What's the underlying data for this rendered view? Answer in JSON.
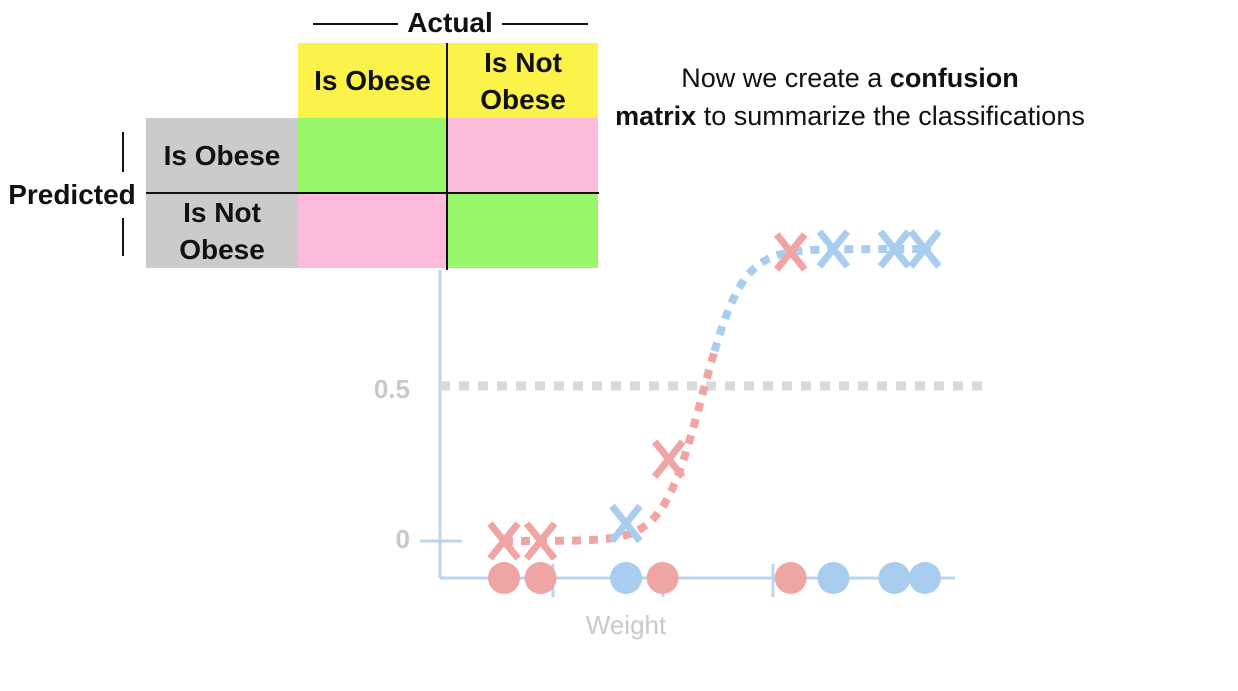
{
  "matrix": {
    "actual_label": "Actual",
    "predicted_label": "Predicted",
    "col_headers": [
      "Is Obese",
      "Is Not Obese"
    ],
    "row_headers": [
      "Is Obese",
      "Is Not Obese"
    ],
    "cells": [
      [
        "green",
        "pink"
      ],
      [
        "pink",
        "green"
      ]
    ]
  },
  "note": {
    "part1": "Now we create a ",
    "bold1": "confusion",
    "bold2": "matrix",
    "part2": " to summarize the classifications"
  },
  "plot": {
    "ytick_high": "0.5",
    "ytick_low": "0",
    "xlabel": "Weight",
    "colors": {
      "red": "#f0a5a5",
      "blue": "#a9cdee",
      "axis": "#bcd5ec",
      "threshold": "#dadada"
    },
    "x_marks": [
      {
        "color": "red",
        "weight": 1.0,
        "prob": 0.0
      },
      {
        "color": "red",
        "weight": 1.6,
        "prob": 0.0
      },
      {
        "color": "blue",
        "weight": 3.0,
        "prob": 0.06
      },
      {
        "color": "red",
        "weight": 3.7,
        "prob": 0.28
      },
      {
        "color": "red",
        "weight": 5.7,
        "prob": 0.99
      },
      {
        "color": "blue",
        "weight": 6.4,
        "prob": 1.0
      },
      {
        "color": "blue",
        "weight": 7.4,
        "prob": 1.0
      },
      {
        "color": "blue",
        "weight": 7.9,
        "prob": 1.0
      }
    ],
    "dots": [
      {
        "color": "red",
        "weight": 1.0
      },
      {
        "color": "red",
        "weight": 1.6
      },
      {
        "color": "blue",
        "weight": 3.0
      },
      {
        "color": "red",
        "weight": 3.6
      },
      {
        "color": "red",
        "weight": 5.7
      },
      {
        "color": "blue",
        "weight": 6.4
      },
      {
        "color": "blue",
        "weight": 7.4
      },
      {
        "color": "blue",
        "weight": 7.9
      }
    ]
  }
}
